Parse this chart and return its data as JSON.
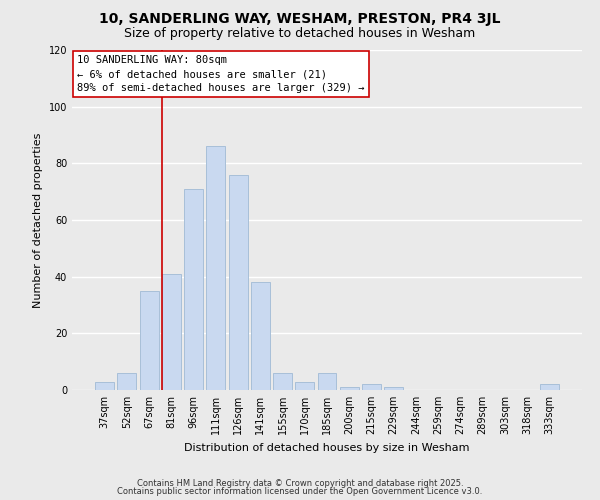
{
  "title": "10, SANDERLING WAY, WESHAM, PRESTON, PR4 3JL",
  "subtitle": "Size of property relative to detached houses in Wesham",
  "xlabel": "Distribution of detached houses by size in Wesham",
  "ylabel": "Number of detached properties",
  "bar_labels": [
    "37sqm",
    "52sqm",
    "67sqm",
    "81sqm",
    "96sqm",
    "111sqm",
    "126sqm",
    "141sqm",
    "155sqm",
    "170sqm",
    "185sqm",
    "200sqm",
    "215sqm",
    "229sqm",
    "244sqm",
    "259sqm",
    "274sqm",
    "289sqm",
    "303sqm",
    "318sqm",
    "333sqm"
  ],
  "bar_values": [
    3,
    6,
    35,
    41,
    71,
    86,
    76,
    38,
    6,
    3,
    6,
    1,
    2,
    1,
    0,
    0,
    0,
    0,
    0,
    0,
    2
  ],
  "bar_color": "#c9d9f0",
  "bar_edge_color": "#a8bfd8",
  "vline_x_idx": 3,
  "vline_color": "#cc0000",
  "ylim": [
    0,
    120
  ],
  "yticks": [
    0,
    20,
    40,
    60,
    80,
    100,
    120
  ],
  "annotation_title": "10 SANDERLING WAY: 80sqm",
  "annotation_line1": "← 6% of detached houses are smaller (21)",
  "annotation_line2": "89% of semi-detached houses are larger (329) →",
  "footer_line1": "Contains HM Land Registry data © Crown copyright and database right 2025.",
  "footer_line2": "Contains public sector information licensed under the Open Government Licence v3.0.",
  "background_color": "#eaeaea",
  "plot_bg_color": "#eaeaea",
  "grid_color": "#ffffff",
  "title_fontsize": 10,
  "subtitle_fontsize": 9,
  "axis_label_fontsize": 8,
  "tick_fontsize": 7,
  "annotation_fontsize": 7.5,
  "footer_fontsize": 6
}
